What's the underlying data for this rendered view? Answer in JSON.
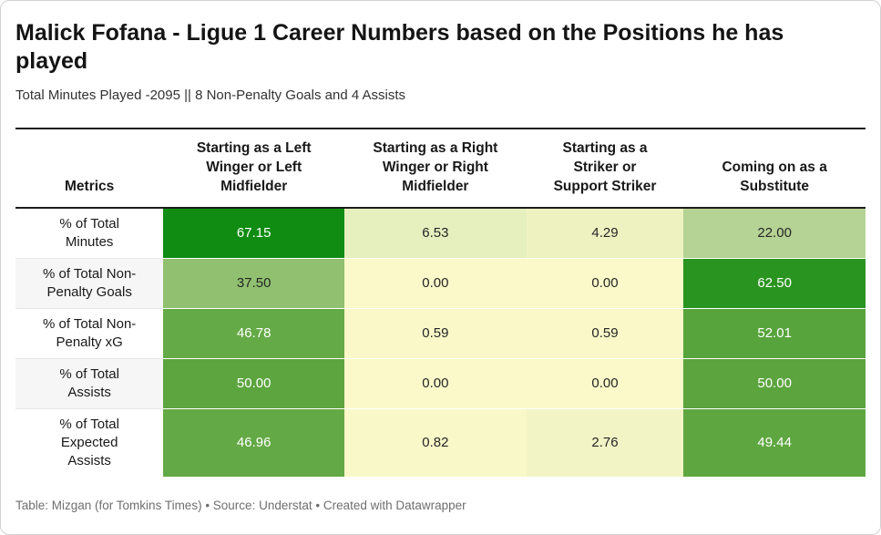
{
  "header": {
    "title": "Malick Fofana - Ligue 1 Career Numbers based on the Positions he has played",
    "title_lines": [
      "Malick Fofana - Ligue 1 Career Numbers based on the Positions he has",
      "played"
    ],
    "subtitle": "Total Minutes Played -2095 || 8 Non-Penalty Goals and 4 Assists"
  },
  "footer": {
    "text": "Table: Mizgan (for Tomkins Times) • Source: Understat • Created with Datawrapper"
  },
  "chart_data": {
    "type": "table",
    "title": "Malick Fofana - Ligue 1 Career Numbers based on the Positions he has played",
    "subtitle": "Total Minutes Played -2095 || 8 Non-Penalty Goals and 4 Assists",
    "categories": [
      "Starting as a Left Winger or Left Midfielder",
      "Starting as a Right Winger or Right Midfielder",
      "Starting as a Striker or Support Striker",
      "Coming on as a Substitute"
    ],
    "series": [
      {
        "name": "% of Total Minutes",
        "values": [
          67.15,
          6.53,
          4.29,
          22.0
        ]
      },
      {
        "name": "% of Total Non-Penalty Goals",
        "values": [
          37.5,
          0.0,
          0.0,
          62.5
        ]
      },
      {
        "name": "% of Total Non-Penalty xG",
        "values": [
          46.78,
          0.59,
          0.59,
          52.01
        ]
      },
      {
        "name": "% of Total Assists",
        "values": [
          50.0,
          0.0,
          0.0,
          50.0
        ]
      },
      {
        "name": "% of Total Expected Assists",
        "values": [
          46.96,
          0.82,
          2.76,
          49.44
        ]
      }
    ],
    "color_scale": {
      "low": "#fbf9ca",
      "mid": "#90c070",
      "high": "#108c12"
    }
  },
  "table": {
    "columns": [
      {
        "key": "metrics",
        "label": "Metrics",
        "lines": [
          "Metrics"
        ]
      },
      {
        "key": "left-winger",
        "label": "Starting as a Left Winger or Left Midfielder",
        "lines": [
          "Starting as a Left",
          "Winger or Left",
          "Midfielder"
        ]
      },
      {
        "key": "right-winger",
        "label": "Starting as a Right Winger or Right Midfielder",
        "lines": [
          "Starting as a Right",
          "Winger or Right",
          "Midfielder"
        ]
      },
      {
        "key": "striker",
        "label": "Starting as a Striker or Support Striker",
        "lines": [
          "Starting as a",
          "Striker or",
          "Support Striker"
        ]
      },
      {
        "key": "substitute",
        "label": "Coming on as a Substitute",
        "lines": [
          "Coming on as a",
          "Substitute"
        ]
      }
    ],
    "rows": [
      {
        "label": "% of Total Minutes",
        "label_lines": [
          "% of Total",
          "Minutes"
        ],
        "cells": [
          {
            "text": "67.15",
            "bg": "#108c12",
            "fg": "#ffffff"
          },
          {
            "text": "6.53",
            "bg": "#e6efbe",
            "fg": "#262626"
          },
          {
            "text": "4.29",
            "bg": "#eef2c1",
            "fg": "#262626"
          },
          {
            "text": "22.00",
            "bg": "#b4d394",
            "fg": "#262626"
          }
        ]
      },
      {
        "label": "% of Total Non-Penalty Goals",
        "label_lines": [
          "% of Total Non-",
          "Penalty Goals"
        ],
        "cells": [
          {
            "text": "37.50",
            "bg": "#90c070",
            "fg": "#262626"
          },
          {
            "text": "0.00",
            "bg": "#fbf9ca",
            "fg": "#262626"
          },
          {
            "text": "0.00",
            "bg": "#fbf9ca",
            "fg": "#262626"
          },
          {
            "text": "62.50",
            "bg": "#2a9420",
            "fg": "#ffffff"
          }
        ]
      },
      {
        "label": "% of Total Non-Penalty xG",
        "label_lines": [
          "% of Total Non-",
          "Penalty xG"
        ],
        "cells": [
          {
            "text": "46.78",
            "bg": "#64aa46",
            "fg": "#ffffff"
          },
          {
            "text": "0.59",
            "bg": "#faf8c9",
            "fg": "#262626"
          },
          {
            "text": "0.59",
            "bg": "#faf8c9",
            "fg": "#262626"
          },
          {
            "text": "52.01",
            "bg": "#57a43c",
            "fg": "#ffffff"
          }
        ]
      },
      {
        "label": "% of Total Assists",
        "label_lines": [
          "% of Total",
          "Assists"
        ],
        "cells": [
          {
            "text": "50.00",
            "bg": "#5ca53f",
            "fg": "#ffffff"
          },
          {
            "text": "0.00",
            "bg": "#fbf9ca",
            "fg": "#262626"
          },
          {
            "text": "0.00",
            "bg": "#fbf9ca",
            "fg": "#262626"
          },
          {
            "text": "50.00",
            "bg": "#5ba43e",
            "fg": "#ffffff"
          }
        ]
      },
      {
        "label": "% of Total Expected Assists",
        "label_lines": [
          "% of Total",
          "Expected",
          "Assists"
        ],
        "cells": [
          {
            "text": "46.96",
            "bg": "#63a945",
            "fg": "#ffffff"
          },
          {
            "text": "0.82",
            "bg": "#f9f8c9",
            "fg": "#262626"
          },
          {
            "text": "2.76",
            "bg": "#f3f4c5",
            "fg": "#262626"
          },
          {
            "text": "49.44",
            "bg": "#5ea740",
            "fg": "#ffffff"
          }
        ]
      }
    ]
  }
}
